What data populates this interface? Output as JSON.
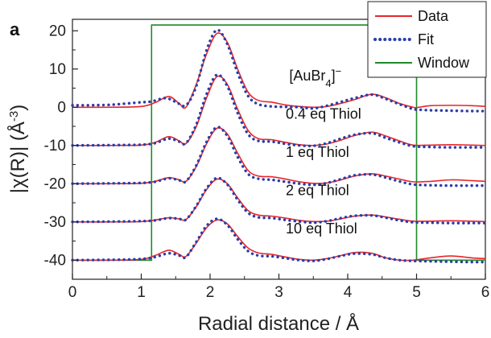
{
  "panel_label": "a",
  "chart_data": {
    "type": "line",
    "xlabel": "Radial distance / Å",
    "ylabel_parts": {
      "pre": "|χ(R)| (Å",
      "sup": "-3",
      "post": ")"
    },
    "xlim": [
      0,
      6
    ],
    "ylim": [
      -45,
      23
    ],
    "xticks": [
      0,
      1,
      2,
      3,
      4,
      5,
      6
    ],
    "yticks": [
      -40,
      -30,
      -20,
      -10,
      0,
      10,
      20
    ],
    "legend": {
      "position": "top-right",
      "entries": [
        {
          "label": "Data",
          "color": "#e8262a",
          "style": "solid"
        },
        {
          "label": "Fit",
          "color": "#2b3da8",
          "style": "dotted"
        },
        {
          "label": "Window",
          "color": "#1f8a2a",
          "style": "solid"
        }
      ]
    },
    "window": {
      "x_start": 1.15,
      "x_end": 5.0,
      "bottom": -40,
      "top": 21.5
    },
    "colors": {
      "data": "#e8262a",
      "fit": "#2b3da8",
      "window": "#1f8a2a"
    },
    "series": [
      {
        "offset": 0,
        "annotation_parts": {
          "pre": "[AuBr",
          "sub": "4",
          "post": "]",
          "sup": "−"
        },
        "annotation_x": 3.15,
        "annotation_y": 7,
        "data": [
          [
            0,
            0
          ],
          [
            0.5,
            0
          ],
          [
            1.0,
            0.2
          ],
          [
            1.2,
            1.2
          ],
          [
            1.4,
            2.8
          ],
          [
            1.55,
            1.0
          ],
          [
            1.65,
            0
          ],
          [
            1.8,
            6
          ],
          [
            1.95,
            14
          ],
          [
            2.1,
            19.3
          ],
          [
            2.25,
            17
          ],
          [
            2.4,
            10
          ],
          [
            2.55,
            4
          ],
          [
            2.7,
            1.8
          ],
          [
            2.9,
            1.3
          ],
          [
            3.1,
            0.6
          ],
          [
            3.3,
            0.2
          ],
          [
            3.5,
            0
          ],
          [
            3.7,
            0.2
          ],
          [
            3.9,
            1
          ],
          [
            4.1,
            2
          ],
          [
            4.35,
            3.4
          ],
          [
            4.55,
            2.5
          ],
          [
            4.75,
            1
          ],
          [
            4.95,
            0
          ],
          [
            5.0,
            -0.1
          ],
          [
            5.2,
            0.4
          ],
          [
            5.5,
            0.5
          ],
          [
            5.8,
            0.4
          ],
          [
            6.0,
            0.2
          ]
        ],
        "fit": [
          [
            0,
            0.5
          ],
          [
            0.5,
            0.6
          ],
          [
            0.8,
            1
          ],
          [
            1.0,
            1.3
          ],
          [
            1.15,
            1.5
          ],
          [
            1.35,
            2.4
          ],
          [
            1.5,
            1.4
          ],
          [
            1.65,
            0.5
          ],
          [
            1.8,
            5.5
          ],
          [
            1.95,
            15
          ],
          [
            2.1,
            20.2
          ],
          [
            2.25,
            16.5
          ],
          [
            2.4,
            9
          ],
          [
            2.55,
            3
          ],
          [
            2.7,
            0.8
          ],
          [
            2.9,
            0.2
          ],
          [
            3.1,
            0.1
          ],
          [
            3.3,
            0
          ],
          [
            3.5,
            -0.3
          ],
          [
            3.7,
            0.4
          ],
          [
            3.9,
            1.4
          ],
          [
            4.1,
            2.4
          ],
          [
            4.35,
            3.3
          ],
          [
            4.55,
            2.2
          ],
          [
            4.75,
            0.8
          ],
          [
            4.95,
            -0.5
          ],
          [
            5.0,
            -0.6
          ],
          [
            5.2,
            -0.8
          ],
          [
            5.5,
            -0.9
          ],
          [
            5.8,
            -1
          ],
          [
            6.0,
            -1
          ]
        ]
      },
      {
        "offset": -10,
        "annotation_parts": {
          "pre": "0.4 eq Thiol",
          "sub": "",
          "post": "",
          "sup": ""
        },
        "annotation_x": 3.1,
        "annotation_y": -3,
        "data": [
          [
            0,
            0
          ],
          [
            0.6,
            0
          ],
          [
            1.0,
            0.1
          ],
          [
            1.2,
            0.8
          ],
          [
            1.4,
            2.3
          ],
          [
            1.55,
            1.2
          ],
          [
            1.65,
            0.5
          ],
          [
            1.8,
            5
          ],
          [
            1.95,
            12.5
          ],
          [
            2.1,
            18
          ],
          [
            2.25,
            16
          ],
          [
            2.4,
            9.5
          ],
          [
            2.55,
            4
          ],
          [
            2.7,
            1.8
          ],
          [
            2.9,
            1.5
          ],
          [
            3.1,
            0.8
          ],
          [
            3.3,
            0.2
          ],
          [
            3.5,
            0
          ],
          [
            3.7,
            0.4
          ],
          [
            3.9,
            1.4
          ],
          [
            4.1,
            2.6
          ],
          [
            4.35,
            3.5
          ],
          [
            4.55,
            2.5
          ],
          [
            4.75,
            1.2
          ],
          [
            4.95,
            0.1
          ],
          [
            5.2,
            0.1
          ],
          [
            5.5,
            0.2
          ],
          [
            5.8,
            0.1
          ],
          [
            6.0,
            0
          ]
        ],
        "fit": [
          [
            0,
            0
          ],
          [
            0.6,
            0.1
          ],
          [
            1.0,
            0.2
          ],
          [
            1.2,
            0.6
          ],
          [
            1.4,
            1.8
          ],
          [
            1.55,
            1.0
          ],
          [
            1.65,
            0.6
          ],
          [
            1.8,
            5.5
          ],
          [
            1.95,
            13.5
          ],
          [
            2.1,
            18.5
          ],
          [
            2.25,
            15.5
          ],
          [
            2.4,
            8.5
          ],
          [
            2.55,
            3
          ],
          [
            2.7,
            1.2
          ],
          [
            2.9,
            1
          ],
          [
            3.1,
            0.4
          ],
          [
            3.3,
            0
          ],
          [
            3.5,
            -0.1
          ],
          [
            3.7,
            0.6
          ],
          [
            3.9,
            1.8
          ],
          [
            4.1,
            2.8
          ],
          [
            4.35,
            3.2
          ],
          [
            4.55,
            2
          ],
          [
            4.75,
            0.8
          ],
          [
            4.95,
            -0.2
          ],
          [
            5.2,
            -0.4
          ],
          [
            5.5,
            -0.5
          ],
          [
            5.8,
            -0.5
          ],
          [
            6.0,
            -0.5
          ]
        ]
      },
      {
        "offset": -20,
        "annotation_parts": {
          "pre": "1 eq Thiol",
          "sub": "",
          "post": "",
          "sup": ""
        },
        "annotation_x": 3.1,
        "annotation_y": -13,
        "data": [
          [
            0,
            0
          ],
          [
            0.6,
            0
          ],
          [
            1.0,
            0.1
          ],
          [
            1.2,
            0.6
          ],
          [
            1.4,
            1.6
          ],
          [
            1.55,
            1.0
          ],
          [
            1.65,
            0.6
          ],
          [
            1.8,
            4.5
          ],
          [
            1.95,
            10.5
          ],
          [
            2.1,
            14.5
          ],
          [
            2.25,
            13
          ],
          [
            2.4,
            8
          ],
          [
            2.55,
            3.5
          ],
          [
            2.7,
            2
          ],
          [
            2.9,
            1.8
          ],
          [
            3.1,
            1.2
          ],
          [
            3.3,
            0.5
          ],
          [
            3.5,
            0.1
          ],
          [
            3.7,
            0.2
          ],
          [
            3.9,
            1
          ],
          [
            4.1,
            2
          ],
          [
            4.35,
            2.6
          ],
          [
            4.55,
            2
          ],
          [
            4.75,
            1.2
          ],
          [
            4.95,
            0.5
          ],
          [
            5.2,
            0.6
          ],
          [
            5.5,
            1
          ],
          [
            5.8,
            0.8
          ],
          [
            6.0,
            0.6
          ]
        ],
        "fit": [
          [
            0,
            0
          ],
          [
            0.6,
            0.1
          ],
          [
            1.0,
            0.2
          ],
          [
            1.2,
            0.5
          ],
          [
            1.4,
            1.4
          ],
          [
            1.55,
            0.9
          ],
          [
            1.65,
            0.6
          ],
          [
            1.8,
            4.8
          ],
          [
            1.95,
            11
          ],
          [
            2.1,
            14.8
          ],
          [
            2.25,
            12.5
          ],
          [
            2.4,
            7
          ],
          [
            2.55,
            2.6
          ],
          [
            2.7,
            1.3
          ],
          [
            2.9,
            1
          ],
          [
            3.1,
            0.5
          ],
          [
            3.3,
            0
          ],
          [
            3.5,
            -0.3
          ],
          [
            3.7,
            0.2
          ],
          [
            3.9,
            1.2
          ],
          [
            4.1,
            2.2
          ],
          [
            4.35,
            2.4
          ],
          [
            4.55,
            1.6
          ],
          [
            4.75,
            0.6
          ],
          [
            4.95,
            -0.2
          ],
          [
            5.2,
            -0.4
          ],
          [
            5.5,
            -0.5
          ],
          [
            5.8,
            -0.5
          ],
          [
            6.0,
            -0.5
          ]
        ]
      },
      {
        "offset": -30,
        "annotation_parts": {
          "pre": "2 eq Thiol",
          "sub": "",
          "post": "",
          "sup": ""
        },
        "annotation_x": 3.1,
        "annotation_y": -23,
        "data": [
          [
            0,
            0
          ],
          [
            0.6,
            0
          ],
          [
            1.0,
            0.1
          ],
          [
            1.2,
            0.5
          ],
          [
            1.4,
            1.1
          ],
          [
            1.55,
            0.8
          ],
          [
            1.65,
            0.6
          ],
          [
            1.8,
            4
          ],
          [
            1.95,
            8.5
          ],
          [
            2.1,
            11.2
          ],
          [
            2.25,
            10
          ],
          [
            2.4,
            6.3
          ],
          [
            2.55,
            3
          ],
          [
            2.7,
            1.8
          ],
          [
            2.9,
            1.5
          ],
          [
            3.1,
            1
          ],
          [
            3.3,
            0.4
          ],
          [
            3.5,
            0.1
          ],
          [
            3.7,
            0.2
          ],
          [
            3.9,
            0.8
          ],
          [
            4.1,
            1.5
          ],
          [
            4.35,
            1.8
          ],
          [
            4.55,
            1.3
          ],
          [
            4.75,
            0.7
          ],
          [
            4.95,
            0.2
          ],
          [
            5.2,
            0.2
          ],
          [
            5.5,
            0.3
          ],
          [
            5.8,
            0.2
          ],
          [
            6.0,
            0.1
          ]
        ],
        "fit": [
          [
            0,
            0
          ],
          [
            0.6,
            0.1
          ],
          [
            1.0,
            0.2
          ],
          [
            1.2,
            0.4
          ],
          [
            1.4,
            1
          ],
          [
            1.55,
            0.8
          ],
          [
            1.65,
            0.6
          ],
          [
            1.8,
            4.2
          ],
          [
            1.95,
            8.8
          ],
          [
            2.1,
            11.5
          ],
          [
            2.25,
            9.8
          ],
          [
            2.4,
            5.8
          ],
          [
            2.55,
            2.4
          ],
          [
            2.7,
            1.2
          ],
          [
            2.9,
            1
          ],
          [
            3.1,
            0.5
          ],
          [
            3.3,
            0.1
          ],
          [
            3.5,
            -0.2
          ],
          [
            3.7,
            0.2
          ],
          [
            3.9,
            1
          ],
          [
            4.1,
            1.6
          ],
          [
            4.35,
            1.7
          ],
          [
            4.55,
            1.1
          ],
          [
            4.75,
            0.4
          ],
          [
            4.95,
            -0.1
          ],
          [
            5.2,
            -0.2
          ],
          [
            5.5,
            -0.3
          ],
          [
            5.8,
            -0.3
          ],
          [
            6.0,
            -0.3
          ]
        ]
      },
      {
        "offset": -40,
        "annotation_parts": {
          "pre": "10 eq Thiol",
          "sub": "",
          "post": "",
          "sup": ""
        },
        "annotation_x": 3.1,
        "annotation_y": -33,
        "data": [
          [
            0,
            0
          ],
          [
            0.6,
            0
          ],
          [
            1.0,
            0.2
          ],
          [
            1.2,
            1.2
          ],
          [
            1.4,
            2.6
          ],
          [
            1.55,
            1.5
          ],
          [
            1.65,
            1.0
          ],
          [
            1.8,
            4.5
          ],
          [
            1.95,
            8.5
          ],
          [
            2.1,
            10.5
          ],
          [
            2.25,
            9.5
          ],
          [
            2.4,
            6.2
          ],
          [
            2.55,
            3.2
          ],
          [
            2.7,
            1.9
          ],
          [
            2.9,
            1.5
          ],
          [
            3.1,
            0.8
          ],
          [
            3.3,
            0.2
          ],
          [
            3.5,
            0
          ],
          [
            3.7,
            0.4
          ],
          [
            3.9,
            1.2
          ],
          [
            4.1,
            2
          ],
          [
            4.35,
            1.8
          ],
          [
            4.55,
            0.6
          ],
          [
            4.75,
            0
          ],
          [
            4.95,
            0
          ],
          [
            5.2,
            0.6
          ],
          [
            5.5,
            1.1
          ],
          [
            5.8,
            0.6
          ],
          [
            6.0,
            0.4
          ]
        ],
        "fit": [
          [
            0,
            0
          ],
          [
            0.6,
            0.1
          ],
          [
            1.0,
            0.3
          ],
          [
            1.2,
            0.8
          ],
          [
            1.4,
            1.8
          ],
          [
            1.55,
            1.2
          ],
          [
            1.65,
            0.8
          ],
          [
            1.8,
            4.8
          ],
          [
            1.95,
            9
          ],
          [
            2.1,
            10.8
          ],
          [
            2.25,
            9.2
          ],
          [
            2.4,
            5.5
          ],
          [
            2.55,
            2.4
          ],
          [
            2.7,
            1.2
          ],
          [
            2.9,
            1
          ],
          [
            3.1,
            0.5
          ],
          [
            3.3,
            0
          ],
          [
            3.5,
            -0.2
          ],
          [
            3.7,
            0.3
          ],
          [
            3.9,
            1.1
          ],
          [
            4.1,
            1.7
          ],
          [
            4.35,
            1.5
          ],
          [
            4.55,
            0.6
          ],
          [
            4.75,
            0
          ],
          [
            4.95,
            -0.2
          ],
          [
            5.2,
            -0.3
          ],
          [
            5.5,
            -0.4
          ],
          [
            5.8,
            -0.5
          ],
          [
            6.0,
            -0.5
          ]
        ]
      }
    ]
  }
}
